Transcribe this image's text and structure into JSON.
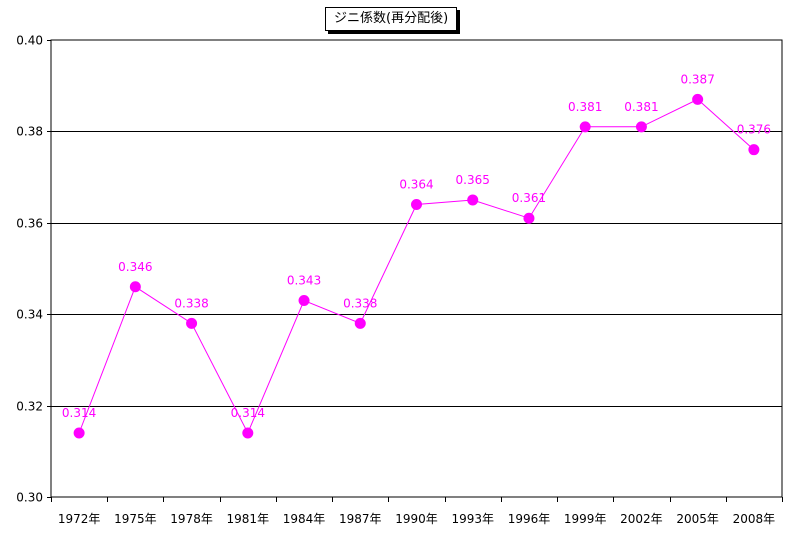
{
  "chart_data": {
    "type": "line",
    "title": "ジニ係数(再分配後)",
    "categories": [
      "1972年",
      "1975年",
      "1978年",
      "1981年",
      "1984年",
      "1987年",
      "1990年",
      "1993年",
      "1996年",
      "1999年",
      "2002年",
      "2005年",
      "2008年"
    ],
    "series": [
      {
        "values": [
          0.314,
          0.346,
          0.338,
          0.314,
          0.343,
          0.338,
          0.364,
          0.365,
          0.361,
          0.381,
          0.381,
          0.387,
          0.376
        ],
        "data_labels": [
          "0.314",
          "0.346",
          "0.338",
          "0.314",
          "0.343",
          "0.338",
          "0.364",
          "0.365",
          "0.361",
          "0.381",
          "0.381",
          "0.387",
          "0.376"
        ],
        "color": "#ff00ff",
        "marker": "circle"
      }
    ],
    "ylim": [
      0.3,
      0.4
    ],
    "yticks": [
      0.3,
      0.32,
      0.34,
      0.36,
      0.38,
      0.4
    ],
    "ytick_labels": [
      "0.30",
      "0.32",
      "0.34",
      "0.36",
      "0.38",
      "0.40"
    ],
    "xlabel": "",
    "ylabel": "",
    "grid": "horizontal",
    "legend": "none",
    "colors": {
      "series": "#ff00ff",
      "grid": "#000000",
      "frame": "#000000",
      "background": "#ffffff"
    }
  }
}
